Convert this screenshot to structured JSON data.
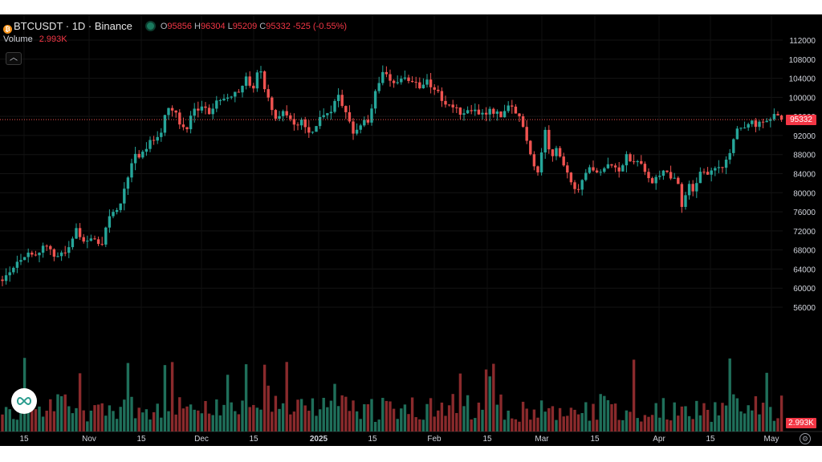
{
  "header": {
    "symbol": "BTCUSDT · 1D · Binance",
    "coin_icon": "bitcoin-icon",
    "status_icon": "market-status-dot-icon",
    "open_label": "O",
    "open": "95856",
    "high_label": "H",
    "high": "96304",
    "low_label": "L",
    "low": "95209",
    "close_label": "C",
    "close": "95332",
    "change": "-525 (-0.55%)"
  },
  "volume": {
    "label": "Volume",
    "value": "2.993K"
  },
  "collapse_icon": "chevron-up-icon",
  "brand_logo": "infinity-logo-icon",
  "settings_icon": "gear-icon",
  "price_tag": "95332",
  "volume_tag": "2.993K",
  "colors": {
    "up": "#26a69a",
    "down": "#ef5350",
    "up_volume": "#1f6f5a",
    "down_volume": "#8a2a2c",
    "background": "#000000",
    "axis_text": "#d1d4dc"
  },
  "chart_data": {
    "type": "candlestick",
    "interval": "1D",
    "exchange": "Binance",
    "y_ticks": [
      56000,
      60000,
      64000,
      68000,
      72000,
      76000,
      80000,
      84000,
      88000,
      92000,
      96000,
      100000,
      104000,
      108000,
      112000
    ],
    "x_ticks": [
      "15",
      "Nov",
      "15",
      "Dec",
      "15",
      "2025",
      "15",
      "Feb",
      "15",
      "Mar",
      "15",
      "Apr",
      "15",
      "May"
    ],
    "last_price": 95332,
    "close_path": [
      [
        1,
        61800
      ],
      [
        8,
        63200
      ],
      [
        18,
        64800
      ],
      [
        28,
        66800
      ],
      [
        40,
        67200
      ],
      [
        55,
        68300
      ],
      [
        62,
        67900
      ],
      [
        72,
        66700
      ],
      [
        85,
        67800
      ],
      [
        95,
        72500
      ],
      [
        104,
        70300
      ],
      [
        118,
        69800
      ],
      [
        128,
        69400
      ],
      [
        136,
        75500
      ],
      [
        148,
        76700
      ],
      [
        157,
        81500
      ],
      [
        166,
        87800
      ],
      [
        178,
        88200
      ],
      [
        190,
        91200
      ],
      [
        200,
        92600
      ],
      [
        207,
        97900
      ],
      [
        218,
        97200
      ],
      [
        230,
        92600
      ],
      [
        240,
        97200
      ],
      [
        252,
        97400
      ],
      [
        262,
        96900
      ],
      [
        272,
        99500
      ],
      [
        285,
        100600
      ],
      [
        297,
        101400
      ],
      [
        306,
        104000
      ],
      [
        315,
        101800
      ],
      [
        323,
        106500
      ],
      [
        330,
        101700
      ],
      [
        338,
        97500
      ],
      [
        346,
        95300
      ],
      [
        355,
        97500
      ],
      [
        365,
        93700
      ],
      [
        375,
        95100
      ],
      [
        385,
        92800
      ],
      [
        392,
        93600
      ],
      [
        402,
        96800
      ],
      [
        412,
        97300
      ],
      [
        422,
        101100
      ],
      [
        430,
        96500
      ],
      [
        440,
        92900
      ],
      [
        450,
        94500
      ],
      [
        460,
        94700
      ],
      [
        467,
        100300
      ],
      [
        475,
        105000
      ],
      [
        484,
        104700
      ],
      [
        492,
        102400
      ],
      [
        500,
        103600
      ],
      [
        508,
        104000
      ],
      [
        516,
        103500
      ],
      [
        524,
        102300
      ],
      [
        532,
        104000
      ],
      [
        540,
        101500
      ],
      [
        548,
        100900
      ],
      [
        556,
        97500
      ],
      [
        562,
        98400
      ],
      [
        572,
        96800
      ],
      [
        585,
        97000
      ],
      [
        600,
        96700
      ],
      [
        612,
        97400
      ],
      [
        626,
        96200
      ],
      [
        636,
        98300
      ],
      [
        648,
        95600
      ],
      [
        656,
        91500
      ],
      [
        663,
        86500
      ],
      [
        671,
        84300
      ],
      [
        679,
        93700
      ],
      [
        686,
        86200
      ],
      [
        694,
        90300
      ],
      [
        701,
        86400
      ],
      [
        710,
        83100
      ],
      [
        718,
        79200
      ],
      [
        726,
        82300
      ],
      [
        734,
        84900
      ],
      [
        742,
        84000
      ],
      [
        752,
        84300
      ],
      [
        760,
        86100
      ],
      [
        770,
        84100
      ],
      [
        779,
        87500
      ],
      [
        787,
        86900
      ],
      [
        795,
        87200
      ],
      [
        803,
        85200
      ],
      [
        811,
        82500
      ],
      [
        819,
        83000
      ],
      [
        827,
        85300
      ],
      [
        836,
        83600
      ],
      [
        844,
        83400
      ],
      [
        848,
        78400
      ],
      [
        852,
        76300
      ],
      [
        857,
        82600
      ],
      [
        864,
        79600
      ],
      [
        872,
        84700
      ],
      [
        880,
        84200
      ],
      [
        888,
        84800
      ],
      [
        898,
        85300
      ],
      [
        908,
        87400
      ],
      [
        917,
        93400
      ],
      [
        925,
        93600
      ],
      [
        933,
        94900
      ],
      [
        942,
        94300
      ],
      [
        950,
        94700
      ],
      [
        958,
        94300
      ],
      [
        962,
        96400
      ],
      [
        967,
        96800
      ],
      [
        972,
        95856
      ],
      [
        976,
        95332
      ]
    ]
  }
}
